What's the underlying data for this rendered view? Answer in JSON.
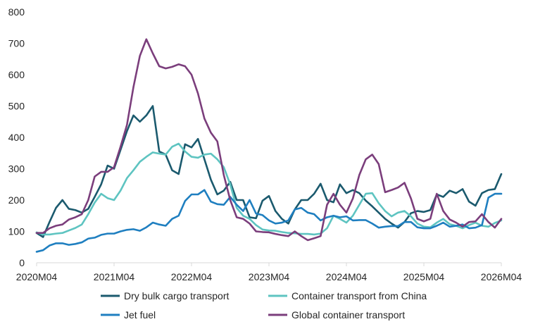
{
  "chart_data": {
    "type": "line",
    "title": "",
    "xlabel": "",
    "ylabel": "",
    "ylim": [
      0,
      800
    ],
    "yticks": [
      0,
      100,
      200,
      300,
      400,
      500,
      600,
      700,
      800
    ],
    "x_tick_labels": [
      "2020M04",
      "2021M04",
      "2022M04",
      "2023M04",
      "2024M04",
      "2025M04",
      "2026M04"
    ],
    "x_start": "2020M04",
    "x_end": "2026M04",
    "grid": false,
    "legend_position": "bottom",
    "series": [
      {
        "name": "Dry bulk cargo transport",
        "color": "#1b5a6e",
        "values": [
          95,
          82,
          130,
          175,
          200,
          172,
          168,
          160,
          172,
          210,
          250,
          310,
          300,
          360,
          420,
          470,
          450,
          470,
          500,
          355,
          345,
          295,
          283,
          378,
          368,
          395,
          330,
          265,
          218,
          230,
          258,
          200,
          200,
          145,
          142,
          198,
          213,
          165,
          140,
          125,
          170,
          200,
          200,
          220,
          252,
          200,
          193,
          250,
          222,
          232,
          222,
          198,
          180,
          160,
          140,
          125,
          112,
          130,
          158,
          165,
          162,
          168,
          218,
          210,
          230,
          222,
          235,
          195,
          182,
          222,
          232,
          235,
          283
        ]
      },
      {
        "name": "Container transport from China",
        "color": "#5ec4c1",
        "values": [
          97,
          90,
          90,
          93,
          95,
          103,
          111,
          122,
          155,
          192,
          220,
          206,
          200,
          230,
          270,
          295,
          322,
          338,
          352,
          348,
          345,
          370,
          380,
          355,
          338,
          335,
          345,
          348,
          330,
          305,
          250,
          175,
          150,
          140,
          120,
          106,
          103,
          102,
          98,
          95,
          94,
          92,
          92,
          90,
          93,
          110,
          150,
          140,
          128,
          150,
          185,
          220,
          222,
          190,
          165,
          148,
          160,
          165,
          148,
          125,
          115,
          113,
          128,
          140,
          123,
          118,
          110,
          120,
          128,
          118,
          115,
          127,
          135
        ]
      },
      {
        "name": "Jet fuel",
        "color": "#1f7fc0",
        "values": [
          35,
          40,
          55,
          62,
          62,
          57,
          60,
          65,
          77,
          80,
          89,
          93,
          93,
          100,
          105,
          107,
          102,
          113,
          128,
          122,
          118,
          140,
          150,
          197,
          218,
          218,
          232,
          195,
          187,
          185,
          210,
          185,
          165,
          200,
          157,
          152,
          135,
          125,
          128,
          135,
          170,
          175,
          160,
          155,
          135,
          145,
          150,
          145,
          148,
          135,
          136,
          136,
          125,
          112,
          115,
          117,
          117,
          130,
          130,
          113,
          110,
          110,
          118,
          128,
          115,
          118,
          122,
          110,
          112,
          120,
          208,
          220,
          220
        ]
      },
      {
        "name": "Global container transport",
        "color": "#7b3e7c",
        "values": [
          95,
          95,
          110,
          118,
          122,
          138,
          145,
          155,
          200,
          275,
          290,
          290,
          305,
          370,
          440,
          560,
          660,
          713,
          668,
          627,
          620,
          625,
          633,
          627,
          600,
          540,
          460,
          415,
          387,
          280,
          200,
          145,
          140,
          125,
          100,
          98,
          97,
          92,
          88,
          85,
          100,
          85,
          72,
          78,
          85,
          185,
          220,
          185,
          160,
          205,
          280,
          330,
          345,
          315,
          225,
          232,
          240,
          255,
          205,
          140,
          132,
          140,
          220,
          165,
          138,
          128,
          115,
          130,
          132,
          155,
          130,
          112,
          140
        ]
      }
    ]
  }
}
